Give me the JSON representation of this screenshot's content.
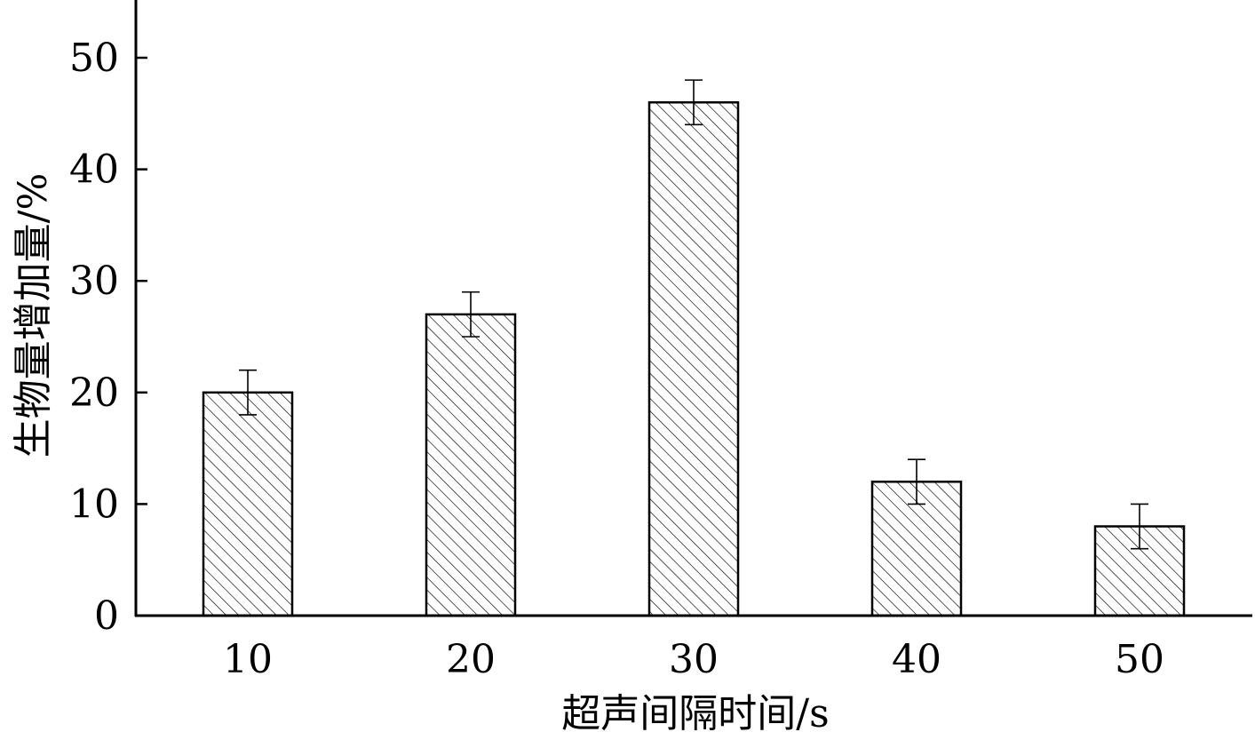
{
  "chart_data": {
    "type": "bar",
    "categories": [
      "10",
      "20",
      "30",
      "40",
      "50"
    ],
    "values": [
      20,
      27,
      46,
      12,
      8
    ],
    "errors": [
      2,
      2,
      2,
      2,
      2
    ],
    "title": "",
    "xlabel": "超声间隔时间/s",
    "ylabel": "生物量增加量/%",
    "ylim": [
      0,
      55
    ],
    "yticks": [
      0,
      10,
      20,
      30,
      40,
      50
    ],
    "bar_fill": "diagonal-hatch",
    "grid": false,
    "legend": "none"
  },
  "colors": {
    "bar_stroke": "#000000",
    "hatch": "#000000",
    "background": "#ffffff"
  }
}
